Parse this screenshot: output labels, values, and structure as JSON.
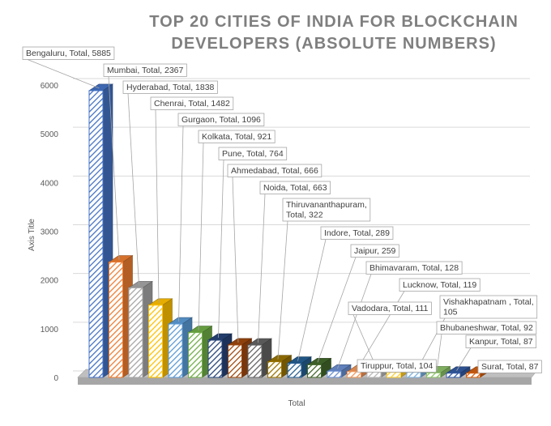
{
  "chart_data": {
    "type": "bar",
    "title_lines": [
      "TOP 20 CITIES OF INDIA FOR BLOCKCHAIN",
      "DEVELOPERS  (ABSOLUTE NUMBERS)"
    ],
    "xlabel": "Total",
    "ylabel": "Axis Title",
    "ylim": [
      0,
      6000
    ],
    "yticks": [
      0,
      1000,
      2000,
      3000,
      4000,
      5000,
      6000
    ],
    "grid": true,
    "series": [
      {
        "name": "Total",
        "categories": [
          "Bengaluru",
          "Mumbai",
          "Hyderabad",
          "Chenrai",
          "Gurgaon",
          "Kolkata",
          "Pune",
          "Ahmedabad",
          "Noida",
          "Thiruvananthapuram",
          "Indore",
          "Jaipur",
          "Bhimavaram",
          "Lucknow",
          "Vadodara",
          "Tiruppur",
          "Vishakhapatnam",
          "Bhubaneshwar",
          "Kanpur",
          "Surat"
        ],
        "values": [
          5885,
          2367,
          1838,
          1482,
          1096,
          921,
          764,
          666,
          663,
          322,
          289,
          259,
          128,
          119,
          111,
          104,
          105,
          92,
          87,
          87
        ]
      }
    ],
    "data_labels": [
      [
        "Bengaluru, Total, 5885"
      ],
      [
        "Mumbai, Total, 2367"
      ],
      [
        "Hyderabad, Total, 1838"
      ],
      [
        "Chenrai, Total, 1482"
      ],
      [
        "Gurgaon, Total, 1096"
      ],
      [
        "Kolkata, Total, 921"
      ],
      [
        "Pune, Total, 764"
      ],
      [
        "Ahmedabad, Total, 666"
      ],
      [
        "Noida, Total, 663"
      ],
      [
        "Thiruvananthapuram,",
        "Total, 322"
      ],
      [
        "Indore, Total, 289"
      ],
      [
        "Jaipur,  259"
      ],
      [
        "Bhimavaram, Total, 128"
      ],
      [
        "Lucknow, Total, 119"
      ],
      [
        "Vadodara, Total, 111"
      ],
      [
        "Tiruppur, Total, 104"
      ],
      [
        "Vishakhapatnam , Total,",
        "105"
      ],
      [
        "Bhubaneshwar, Total, 92"
      ],
      [
        "Kanpur, Total, 87"
      ],
      [
        "Surat, Total, 87"
      ]
    ],
    "bar_colors": [
      "#4472c4",
      "#ed7d31",
      "#a5a5a5",
      "#ffc000",
      "#5b9bd5",
      "#70ad47",
      "#264478",
      "#9e480e",
      "#636363",
      "#997300",
      "#255e91",
      "#43682b",
      "#698ed0",
      "#f1975a",
      "#b7b7b7",
      "#ffcd33",
      "#7cafdd",
      "#8cc168",
      "#335aa1",
      "#d26012"
    ]
  }
}
